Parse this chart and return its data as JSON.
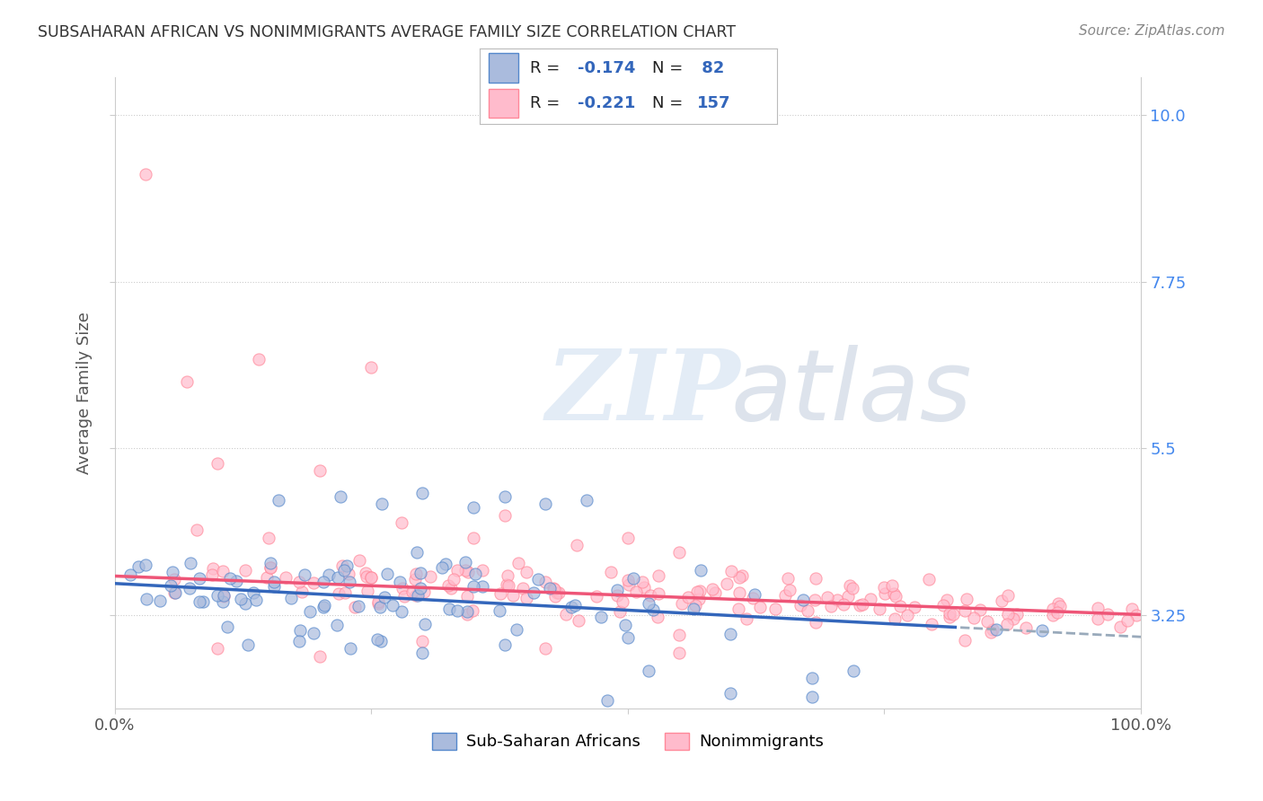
{
  "title": "SUBSAHARAN AFRICAN VS NONIMMIGRANTS AVERAGE FAMILY SIZE CORRELATION CHART",
  "source_text": "Source: ZipAtlas.com",
  "ylabel": "Average Family Size",
  "xlabel": "",
  "x_tick_labels": [
    "0.0%",
    "100.0%"
  ],
  "y_ticks": [
    3.25,
    5.5,
    7.75,
    10.0
  ],
  "xlim": [
    0.0,
    1.0
  ],
  "ylim": [
    2.0,
    10.5
  ],
  "legend_label1": "Sub-Saharan Africans",
  "legend_label2": "Nonimmigrants",
  "blue_fill": "#AABBDD",
  "blue_edge": "#5588CC",
  "pink_fill": "#FFBBCC",
  "pink_edge": "#FF8899",
  "blue_line_color": "#3366BB",
  "blue_line_dash": "#99AABB",
  "pink_line_color": "#EE5577",
  "right_axis_color": "#4488EE",
  "label_color": "#3366BB",
  "background_color": "#FFFFFF",
  "grid_color": "#CCCCCC",
  "title_color": "#333333",
  "source_color": "#888888",
  "blue_R": -0.174,
  "blue_N": 82,
  "pink_R": -0.221,
  "pink_N": 157,
  "seed": 42,
  "blue_intercept": 3.68,
  "blue_slope": -0.72,
  "pink_intercept": 3.78,
  "pink_slope": -0.52
}
